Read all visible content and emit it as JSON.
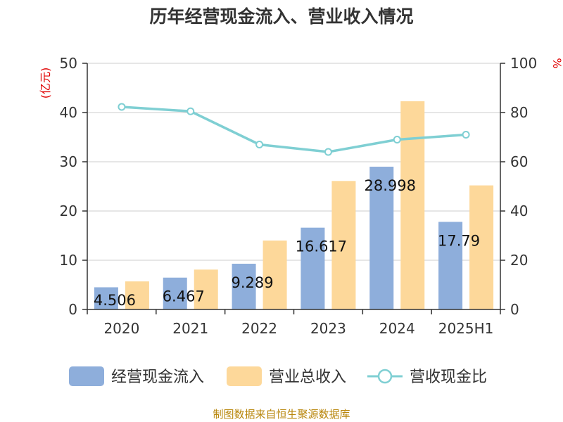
{
  "chart_data": {
    "type": "bar",
    "title": "历年经营现金流入、营业收入情况",
    "categories": [
      "2020",
      "2021",
      "2022",
      "2023",
      "2024",
      "2025H1"
    ],
    "y_left": {
      "unit": "(亿元)",
      "ylim": [
        0,
        50
      ],
      "ticks": [
        "0",
        "10",
        "20",
        "30",
        "40",
        "50"
      ]
    },
    "y_right": {
      "unit": "%",
      "ylim": [
        0,
        100
      ],
      "ticks": [
        "0",
        "20",
        "40",
        "60",
        "80",
        "100"
      ]
    },
    "grid": true,
    "legend_position": "bottom",
    "series": [
      {
        "name": "经营现金流入",
        "type": "bar",
        "axis": "left",
        "color": "#8eaedb",
        "values": [
          4.506,
          6.467,
          9.289,
          16.617,
          28.998,
          17.79
        ],
        "labels": [
          "4.506",
          "6.467",
          "9.289",
          "16.617",
          "28.998",
          "17.79"
        ]
      },
      {
        "name": "营业总收入",
        "type": "bar",
        "axis": "left",
        "color": "#fdd89a",
        "values": [
          5.7,
          8.1,
          14.0,
          26.1,
          42.3,
          25.2
        ]
      },
      {
        "name": "营收现金比",
        "type": "line",
        "axis": "right",
        "color": "#7fcfd3",
        "values": [
          82.3,
          80.5,
          67.0,
          64.0,
          69.0,
          71.0
        ]
      }
    ],
    "source": "制图数据来自恒生聚源数据库"
  }
}
